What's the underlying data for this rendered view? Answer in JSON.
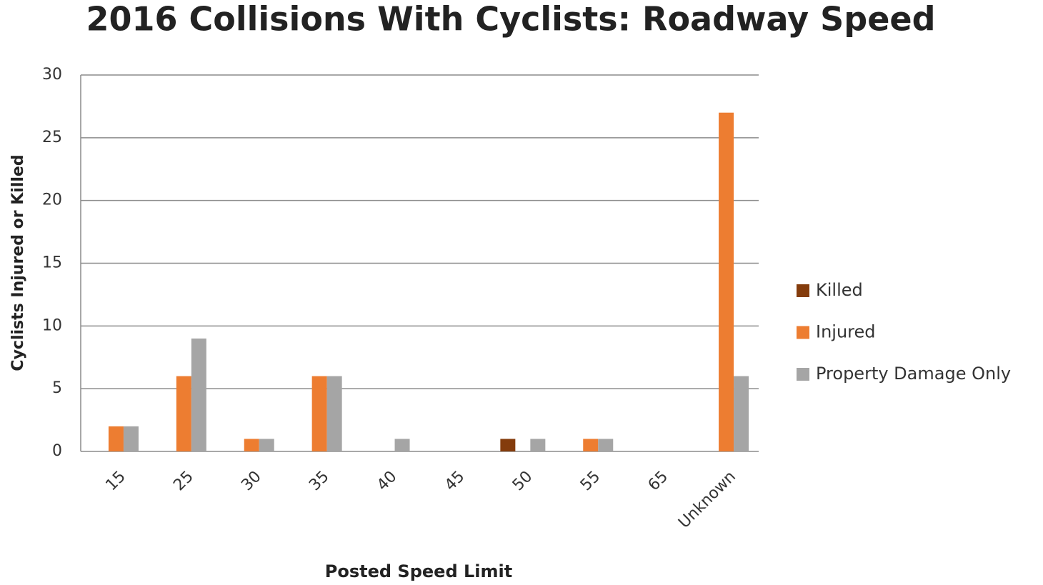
{
  "chart_data": {
    "type": "bar",
    "title": "2016 Collisions With Cyclists: Roadway Speed",
    "x_label": "Posted Speed Limit",
    "y_label": "Cyclists Injured or Killed",
    "categories": [
      "15",
      "25",
      "30",
      "35",
      "40",
      "45",
      "50",
      "55",
      "65",
      "Unknown"
    ],
    "series": [
      {
        "name": "Killed",
        "color": "#843c0c",
        "values": [
          0,
          0,
          0,
          0,
          0,
          0,
          1,
          0,
          0,
          0
        ]
      },
      {
        "name": "Injured",
        "color": "#ed7d31",
        "values": [
          2,
          6,
          1,
          6,
          0,
          0,
          0,
          1,
          0,
          27
        ]
      },
      {
        "name": "Property Damage Only",
        "color": "#a5a5a5",
        "values": [
          2,
          9,
          1,
          6,
          1,
          0,
          1,
          1,
          0,
          6
        ]
      }
    ],
    "ylim": [
      0,
      30
    ],
    "yticks": [
      0,
      5,
      10,
      15,
      20,
      25,
      30
    ],
    "grid": true,
    "legend": "right"
  }
}
